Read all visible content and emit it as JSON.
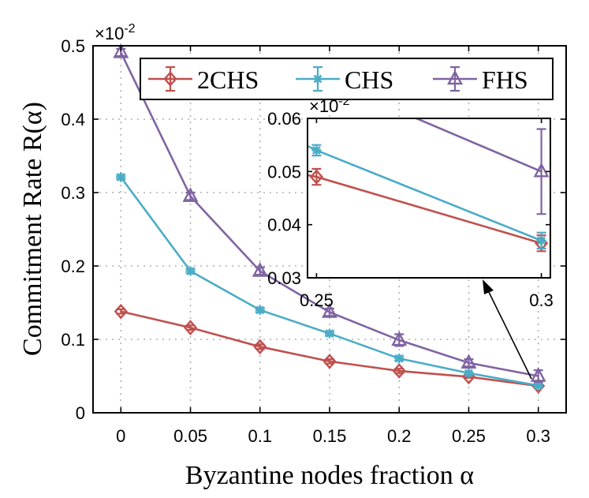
{
  "chart_data": {
    "type": "line",
    "xlabel": "Byzantine nodes fraction α",
    "ylabel": "Commitment Rate R(α)",
    "y_multiplier": "×10",
    "y_multiplier_exp": "-2",
    "x": [
      0,
      0.05,
      0.1,
      0.15,
      0.2,
      0.25,
      0.3
    ],
    "x_tick_labels": [
      "0",
      "0.05",
      "0.1",
      "0.15",
      "0.2",
      "0.25",
      "0.3"
    ],
    "y_tick_labels": [
      "0",
      "0.1",
      "0.2",
      "0.3",
      "0.4",
      "0.5"
    ],
    "xlim": [
      -0.02,
      0.32
    ],
    "ylim": [
      0,
      0.5
    ],
    "grid": true,
    "legend_position": "top-right",
    "series": [
      {
        "name": "2CHS",
        "color": "#c0504d",
        "marker": "diamond",
        "values": [
          0.138,
          0.116,
          0.09,
          0.07,
          0.057,
          0.049,
          0.0365
        ],
        "errors": [
          0.003,
          0.003,
          0.003,
          0.003,
          0.003,
          0.0015,
          0.0015
        ]
      },
      {
        "name": "CHS",
        "color": "#4bacc6",
        "marker": "star",
        "values": [
          0.321,
          0.193,
          0.14,
          0.108,
          0.074,
          0.054,
          0.037
        ],
        "errors": [
          0.003,
          0.003,
          0.003,
          0.003,
          0.003,
          0.001,
          0.0015
        ]
      },
      {
        "name": "FHS",
        "color": "#8064a2",
        "marker": "triangle",
        "values": [
          0.491,
          0.295,
          0.193,
          0.137,
          0.099,
          0.068,
          0.05
        ],
        "errors": [
          0.005,
          0.005,
          0.005,
          0.005,
          0.008,
          0.005,
          0.008
        ]
      }
    ],
    "inset": {
      "xlim": [
        0.248,
        0.302
      ],
      "ylim": [
        0.03,
        0.06
      ],
      "x_tick_labels": [
        "0.25",
        "0.3"
      ],
      "y_tick_labels": [
        "0.03",
        "0.04",
        "0.05",
        "0.06"
      ],
      "y_multiplier": "×10",
      "y_multiplier_exp": "-2"
    }
  }
}
